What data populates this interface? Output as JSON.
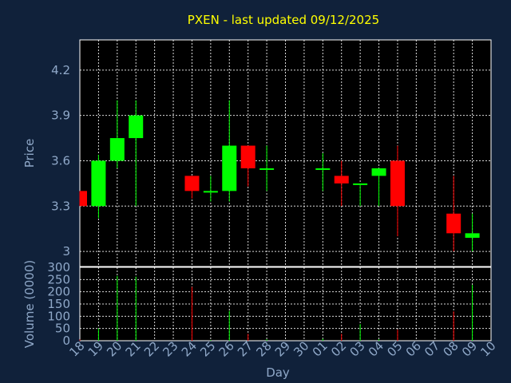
{
  "chart_data": [
    {
      "type": "candlestick",
      "title": "PXEN - last updated 09/12/2025",
      "ylabel": "Price",
      "ylim": [
        2.9,
        4.4
      ],
      "yticks": [
        3,
        3.3,
        3.6,
        3.9,
        4.2
      ],
      "ytick_labels": [
        "3",
        "3.3",
        "3.6",
        "3.9",
        "4.2"
      ],
      "grid": true,
      "categories": [
        "18",
        "19",
        "20",
        "21",
        "22",
        "23",
        "24",
        "25",
        "26",
        "27",
        "28",
        "29",
        "30",
        "01",
        "02",
        "03",
        "04",
        "05",
        "06",
        "07",
        "08",
        "09",
        "10"
      ],
      "candles": [
        {
          "x": "18",
          "open": 3.4,
          "high": 3.4,
          "low": 3.3,
          "close": 3.3
        },
        {
          "x": "19",
          "open": 3.3,
          "high": 3.64,
          "low": 3.22,
          "close": 3.6
        },
        {
          "x": "20",
          "open": 3.6,
          "high": 4.0,
          "low": 3.55,
          "close": 3.75
        },
        {
          "x": "21",
          "open": 3.75,
          "high": 4.0,
          "low": 3.3,
          "close": 3.9
        },
        {
          "x": "24",
          "open": 3.5,
          "high": 3.5,
          "low": 3.35,
          "close": 3.4
        },
        {
          "x": "25",
          "open": 3.4,
          "high": 3.5,
          "low": 3.33,
          "close": 3.4
        },
        {
          "x": "26",
          "open": 3.4,
          "high": 4.0,
          "low": 3.33,
          "close": 3.7
        },
        {
          "x": "27",
          "open": 3.7,
          "high": 3.7,
          "low": 3.43,
          "close": 3.55
        },
        {
          "x": "28",
          "open": 3.55,
          "high": 3.7,
          "low": 3.4,
          "close": 3.55
        },
        {
          "x": "01",
          "open": 3.55,
          "high": 3.65,
          "low": 3.4,
          "close": 3.55
        },
        {
          "x": "02",
          "open": 3.5,
          "high": 3.6,
          "low": 3.3,
          "close": 3.45
        },
        {
          "x": "03",
          "open": 3.45,
          "high": 3.45,
          "low": 3.3,
          "close": 3.45
        },
        {
          "x": "04",
          "open": 3.5,
          "high": 3.55,
          "low": 3.3,
          "close": 3.55
        },
        {
          "x": "05",
          "open": 3.6,
          "high": 3.7,
          "low": 3.1,
          "close": 3.3
        },
        {
          "x": "08",
          "open": 3.25,
          "high": 3.5,
          "low": 3.0,
          "close": 3.12
        },
        {
          "x": "09",
          "open": 3.09,
          "high": 3.25,
          "low": 3.0,
          "close": 3.12
        }
      ]
    },
    {
      "type": "bar",
      "xlabel": "Day",
      "ylabel": "Volume (0000)",
      "ylim": [
        0,
        300
      ],
      "yticks": [
        0,
        50,
        100,
        150,
        200,
        250,
        300
      ],
      "ytick_labels": [
        "0",
        "50",
        "100",
        "150",
        "200",
        "250",
        "300"
      ],
      "grid": true,
      "categories": [
        "18",
        "19",
        "20",
        "21",
        "22",
        "23",
        "24",
        "25",
        "26",
        "27",
        "28",
        "29",
        "30",
        "01",
        "02",
        "03",
        "04",
        "05",
        "06",
        "07",
        "08",
        "09",
        "10"
      ],
      "bars": [
        {
          "x": "18",
          "value": 5,
          "direction": "down"
        },
        {
          "x": "19",
          "value": 50,
          "direction": "up"
        },
        {
          "x": "20",
          "value": 265,
          "direction": "up"
        },
        {
          "x": "21",
          "value": 262,
          "direction": "up"
        },
        {
          "x": "24",
          "value": 220,
          "direction": "down"
        },
        {
          "x": "25",
          "value": 3,
          "direction": "up"
        },
        {
          "x": "26",
          "value": 122,
          "direction": "up"
        },
        {
          "x": "27",
          "value": 28,
          "direction": "down"
        },
        {
          "x": "28",
          "value": 6,
          "direction": "up"
        },
        {
          "x": "01",
          "value": 8,
          "direction": "up"
        },
        {
          "x": "02",
          "value": 28,
          "direction": "down"
        },
        {
          "x": "03",
          "value": 68,
          "direction": "up"
        },
        {
          "x": "04",
          "value": 6,
          "direction": "up"
        },
        {
          "x": "05",
          "value": 45,
          "direction": "down"
        },
        {
          "x": "08",
          "value": 120,
          "direction": "down"
        },
        {
          "x": "09",
          "value": 228,
          "direction": "up"
        }
      ]
    }
  ],
  "colors": {
    "background": "#10213a",
    "plot_background": "#000000",
    "up": "#00ff00",
    "down": "#ff0000",
    "title": "#ffff00",
    "text": "#8fa8c8",
    "grid": "#ffffff"
  }
}
